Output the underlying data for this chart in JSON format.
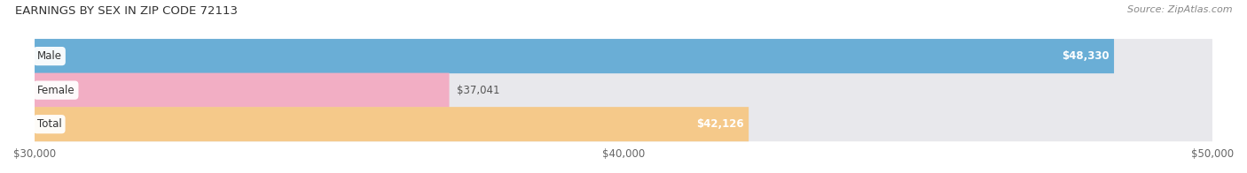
{
  "title": "EARNINGS BY SEX IN ZIP CODE 72113",
  "source": "Source: ZipAtlas.com",
  "categories": [
    "Male",
    "Female",
    "Total"
  ],
  "values": [
    48330,
    37041,
    42126
  ],
  "bar_colors": [
    "#6aaed6",
    "#f2aec4",
    "#f5c98a"
  ],
  "label_colors": [
    "white",
    "#666666",
    "white"
  ],
  "value_inside": [
    true,
    false,
    true
  ],
  "xmin": 30000,
  "xmax": 50000,
  "xticks": [
    30000,
    40000,
    50000
  ],
  "xtick_labels": [
    "$30,000",
    "$40,000",
    "$50,000"
  ],
  "background_color": "#ffffff",
  "bar_bg_color": "#e8e8ec",
  "title_fontsize": 9.5,
  "source_fontsize": 8,
  "label_fontsize": 8.5,
  "tick_fontsize": 8.5,
  "bar_height": 0.52
}
